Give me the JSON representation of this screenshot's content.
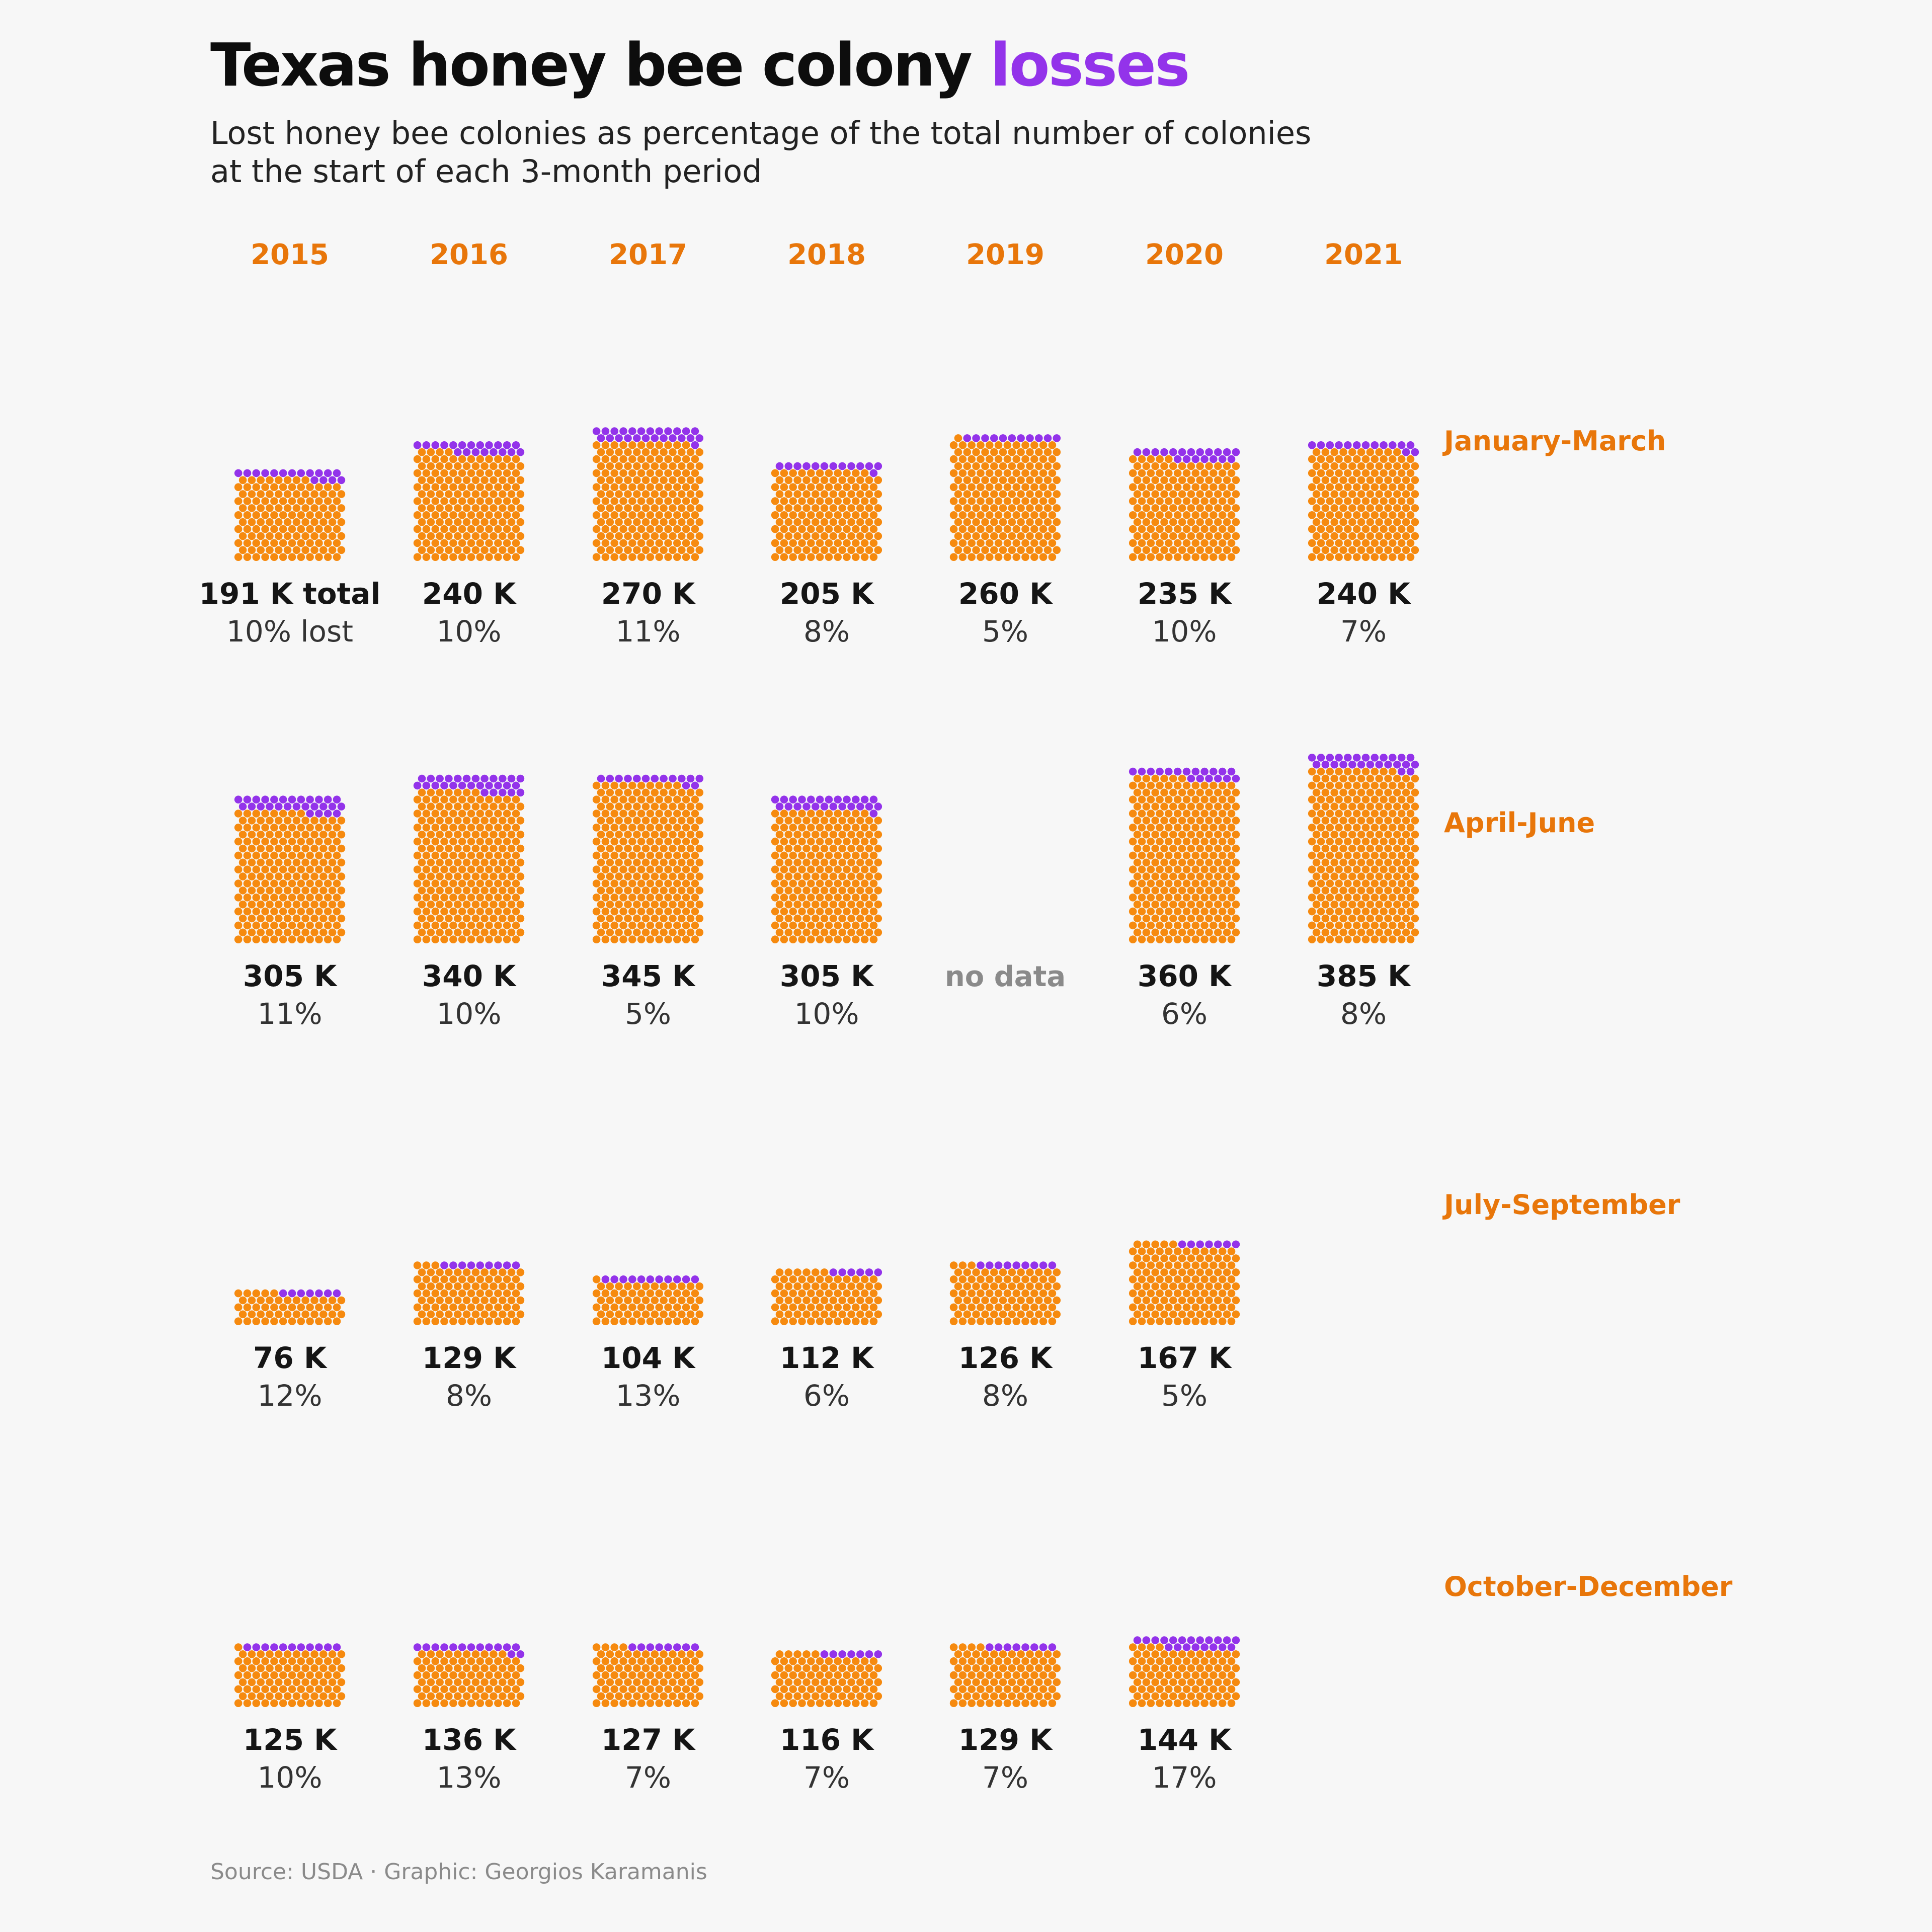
{
  "title": {
    "main": "Texas honey bee colony ",
    "highlight": "losses",
    "subtitle_line1": "Lost honey bee colonies as percentage of the total number of colonies",
    "subtitle_line2": "at the start of each 3-month period"
  },
  "source": "Source: USDA · Graphic: Georgios Karamanis",
  "colors": {
    "remaining": "#f68a0f",
    "lost": "#9333ea",
    "accent_label": "#e8760a",
    "value_text": "#151515",
    "pct_text": "#333333",
    "no_data_text": "#8a8a8a",
    "background": "#f7f7f7"
  },
  "chart_data": {
    "type": "waffle",
    "years": [
      "2015",
      "2016",
      "2017",
      "2018",
      "2019",
      "2020",
      "2021"
    ],
    "periods": [
      "January-March",
      "April-June",
      "July-September",
      "October-December"
    ],
    "no_data_label": "no data",
    "first_label_suffix": {
      "total": " total",
      "pct": " lost"
    },
    "values": [
      [
        {
          "total": "191 K",
          "total_k": 191,
          "pct": "10%",
          "pct_v": 10
        },
        {
          "total": "240 K",
          "total_k": 240,
          "pct": "10%",
          "pct_v": 10
        },
        {
          "total": "270 K",
          "total_k": 270,
          "pct": "11%",
          "pct_v": 11
        },
        {
          "total": "205 K",
          "total_k": 205,
          "pct": "8%",
          "pct_v": 8
        },
        {
          "total": "260 K",
          "total_k": 260,
          "pct": "5%",
          "pct_v": 5
        },
        {
          "total": "235 K",
          "total_k": 235,
          "pct": "10%",
          "pct_v": 10
        },
        {
          "total": "240 K",
          "total_k": 240,
          "pct": "7%",
          "pct_v": 7
        }
      ],
      [
        {
          "total": "305 K",
          "total_k": 305,
          "pct": "11%",
          "pct_v": 11
        },
        {
          "total": "340 K",
          "total_k": 340,
          "pct": "10%",
          "pct_v": 10
        },
        {
          "total": "345 K",
          "total_k": 345,
          "pct": "5%",
          "pct_v": 5
        },
        {
          "total": "305 K",
          "total_k": 305,
          "pct": "10%",
          "pct_v": 10
        },
        null,
        {
          "total": "360 K",
          "total_k": 360,
          "pct": "6%",
          "pct_v": 6
        },
        {
          "total": "385 K",
          "total_k": 385,
          "pct": "8%",
          "pct_v": 8
        }
      ],
      [
        {
          "total": "76 K",
          "total_k": 76,
          "pct": "12%",
          "pct_v": 12
        },
        {
          "total": "129 K",
          "total_k": 129,
          "pct": "8%",
          "pct_v": 8
        },
        {
          "total": "104 K",
          "total_k": 104,
          "pct": "13%",
          "pct_v": 13
        },
        {
          "total": "112 K",
          "total_k": 112,
          "pct": "6%",
          "pct_v": 6
        },
        {
          "total": "126 K",
          "total_k": 126,
          "pct": "8%",
          "pct_v": 8
        },
        {
          "total": "167 K",
          "total_k": 167,
          "pct": "5%",
          "pct_v": 5
        },
        null
      ],
      [
        {
          "total": "125 K",
          "total_k": 125,
          "pct": "10%",
          "pct_v": 10
        },
        {
          "total": "136 K",
          "total_k": 136,
          "pct": "13%",
          "pct_v": 13
        },
        {
          "total": "127 K",
          "total_k": 127,
          "pct": "7%",
          "pct_v": 7
        },
        {
          "total": "116 K",
          "total_k": 116,
          "pct": "7%",
          "pct_v": 7
        },
        {
          "total": "129 K",
          "total_k": 129,
          "pct": "7%",
          "pct_v": 7
        },
        {
          "total": "144 K",
          "total_k": 144,
          "pct": "17%",
          "pct_v": 17
        },
        null
      ]
    ]
  }
}
